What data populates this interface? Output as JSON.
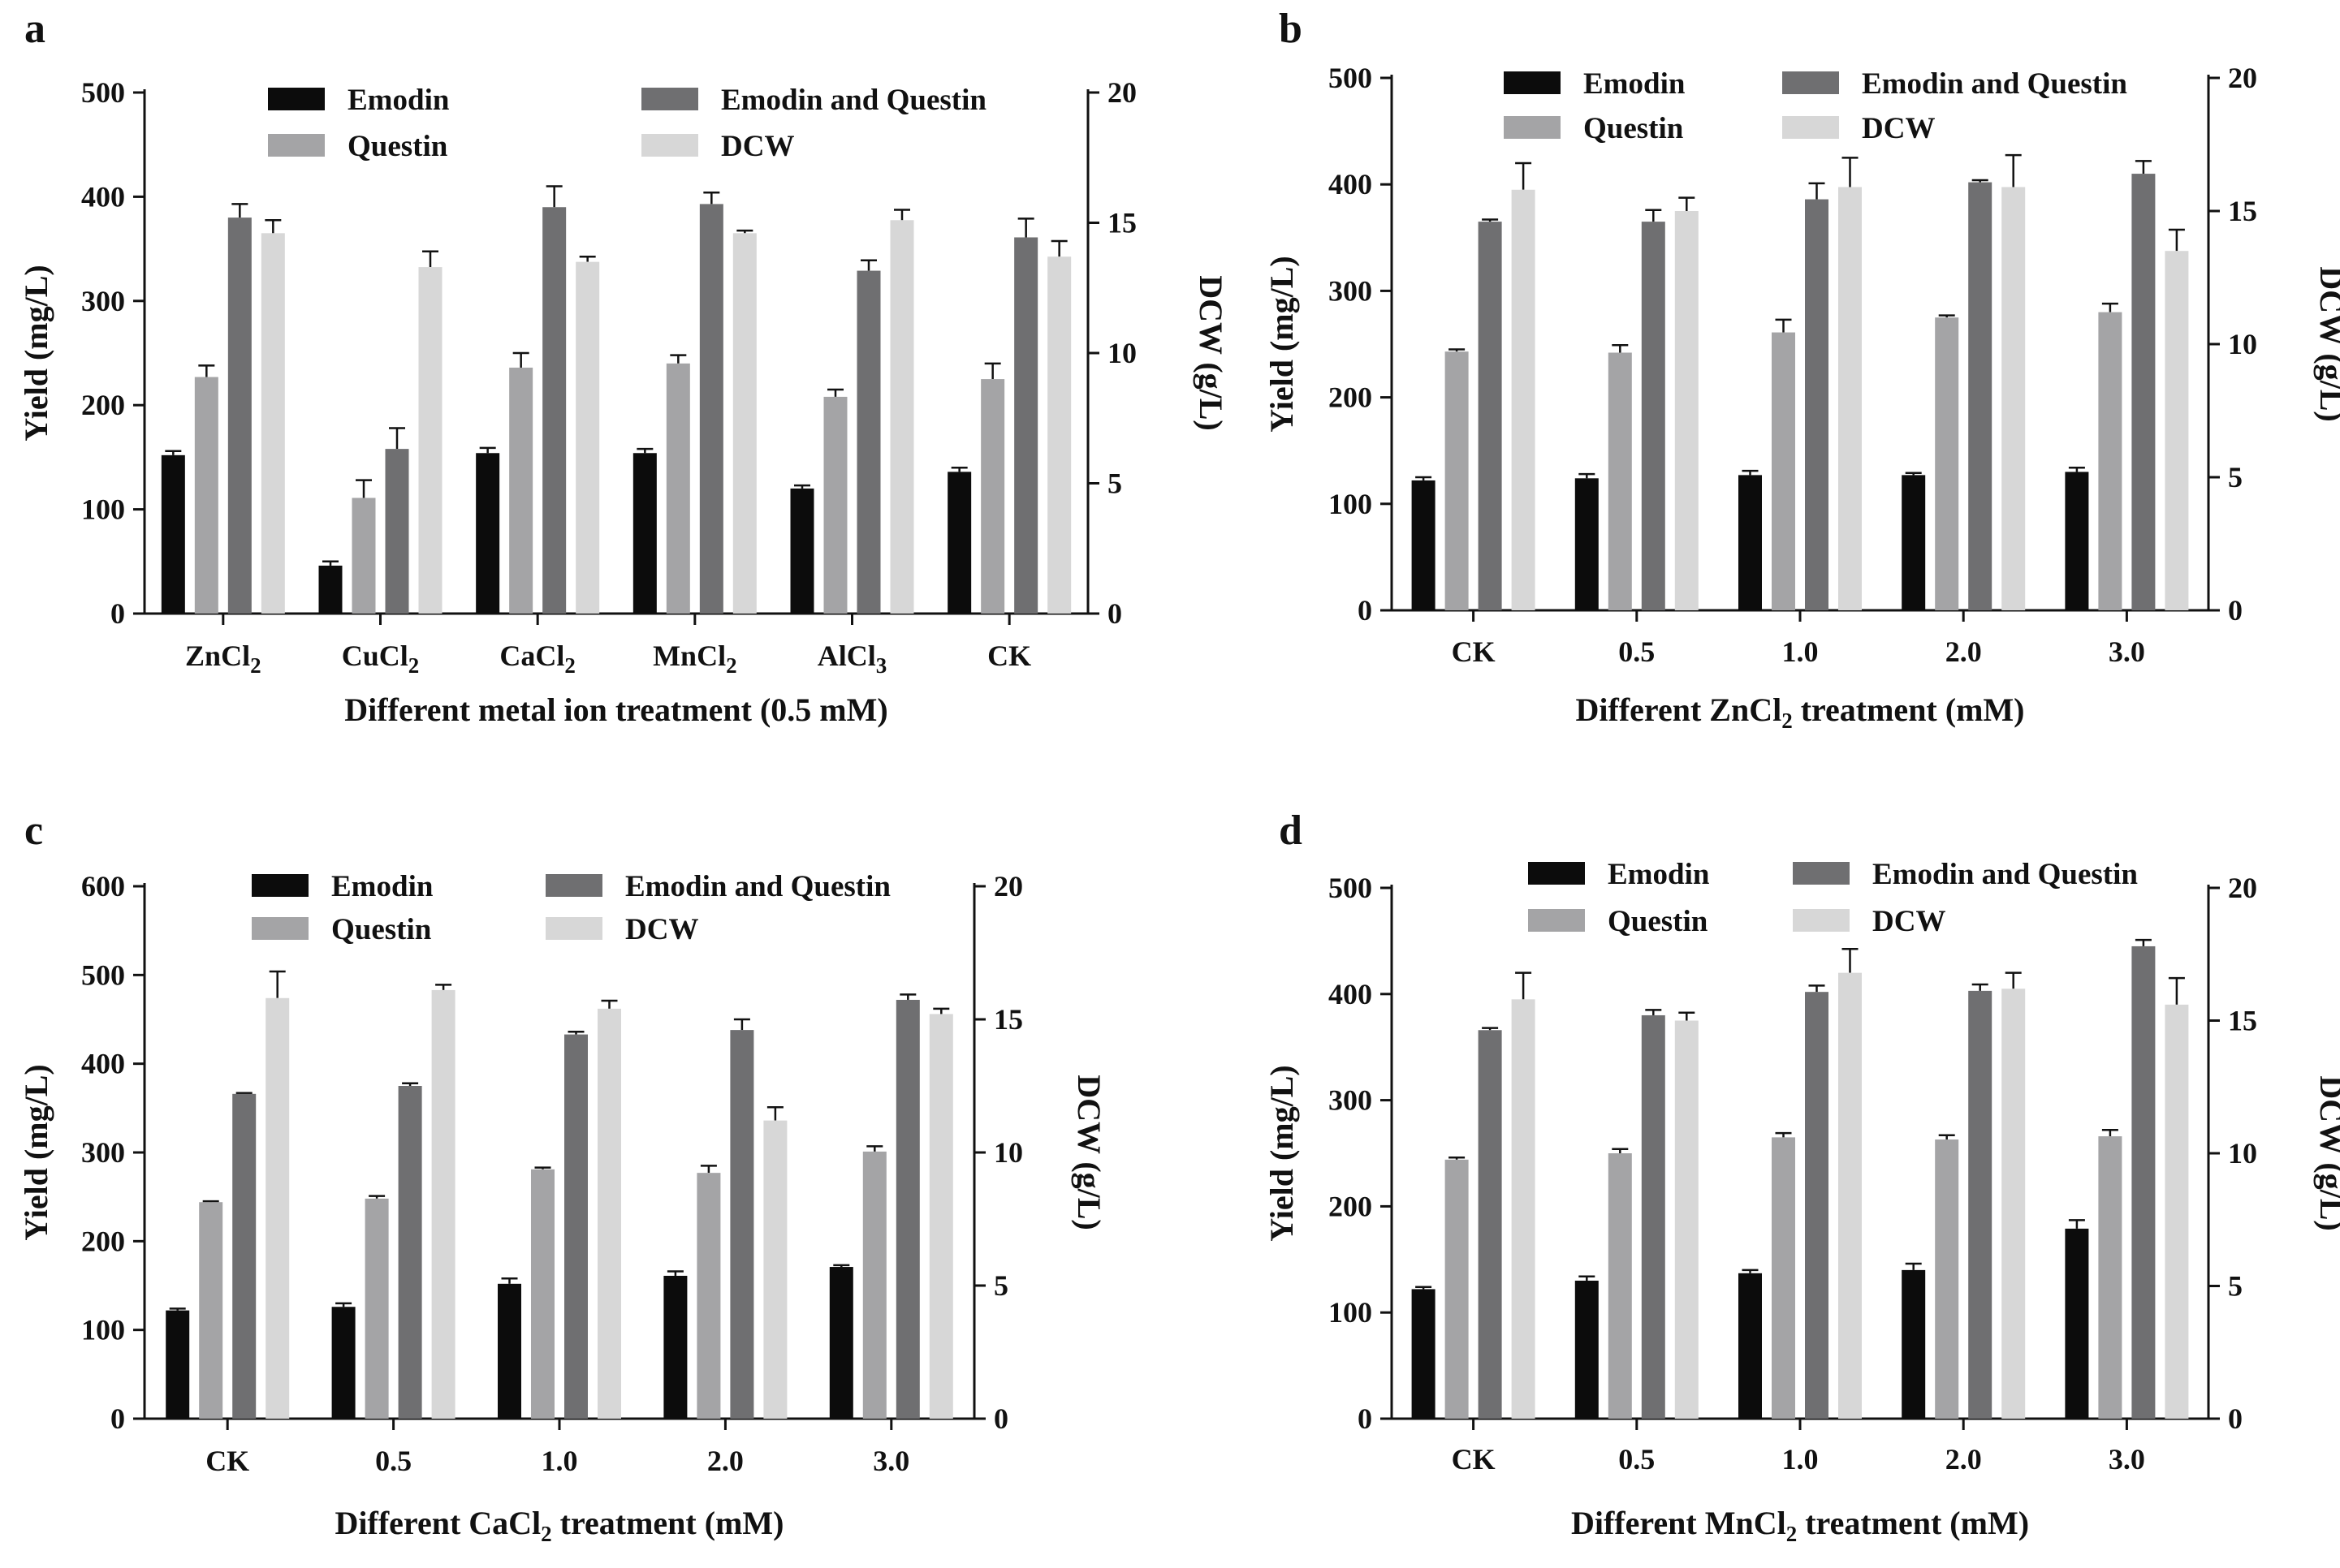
{
  "series_names": [
    "Emodin",
    "Questin",
    "Emodin and Questin",
    "DCW"
  ],
  "colors": {
    "emodin": "#0c0c0c",
    "questin": "#a4a4a6",
    "emodin_and_questin": "#6f6f71",
    "dcw": "#d7d7d7",
    "axis": "#111111"
  },
  "chart_data": [
    {
      "panel": "a",
      "type": "bar",
      "categories": [
        [
          "ZnCl",
          "2",
          ""
        ],
        [
          "CuCl",
          "2",
          ""
        ],
        [
          "CaCl",
          "2",
          ""
        ],
        [
          "MnCl",
          "2",
          ""
        ],
        [
          "AlCl",
          "3",
          ""
        ],
        [
          "CK",
          "",
          ""
        ]
      ],
      "xlabel": [
        "Different metal ion treatment (0.5 mM)",
        "",
        ""
      ],
      "ylabel": "Yield (mg/L)",
      "y2label": "DCW (g/L)",
      "ylim": [
        0,
        500
      ],
      "yticks": [
        0,
        100,
        200,
        300,
        400,
        500
      ],
      "y2lim": [
        0,
        20
      ],
      "y2ticks": [
        0,
        5,
        10,
        15,
        20
      ],
      "series": [
        {
          "name": "Emodin",
          "axis": "left",
          "values": [
            152,
            46,
            154,
            154,
            120,
            136
          ],
          "errors": [
            4,
            4,
            5,
            4,
            3,
            4
          ]
        },
        {
          "name": "Questin",
          "axis": "left",
          "values": [
            227,
            111,
            236,
            240,
            208,
            225
          ],
          "errors": [
            11,
            17,
            14,
            8,
            7,
            15
          ]
        },
        {
          "name": "Emodin and Questin",
          "axis": "left",
          "values": [
            380,
            158,
            390,
            393,
            329,
            361
          ],
          "errors": [
            13,
            20,
            20,
            11,
            10,
            18
          ]
        },
        {
          "name": "DCW",
          "axis": "right",
          "values": [
            14.6,
            13.3,
            13.5,
            14.6,
            15.1,
            13.7
          ],
          "errors": [
            0.5,
            0.6,
            0.2,
            0.1,
            0.4,
            0.6
          ]
        }
      ]
    },
    {
      "panel": "b",
      "type": "bar",
      "categories": [
        [
          "CK",
          "",
          ""
        ],
        [
          "0.5",
          "",
          ""
        ],
        [
          "1.0",
          "",
          ""
        ],
        [
          "2.0",
          "",
          ""
        ],
        [
          "3.0",
          "",
          ""
        ]
      ],
      "xlabel": [
        "Different ZnCl",
        "2",
        " treatment (mM)"
      ],
      "ylabel": "Yield (mg/L)",
      "y2label": "DCW (g/L)",
      "ylim": [
        0,
        500
      ],
      "yticks": [
        0,
        100,
        200,
        300,
        400,
        500
      ],
      "y2lim": [
        0,
        20
      ],
      "y2ticks": [
        0,
        5,
        10,
        15,
        20
      ],
      "series": [
        {
          "name": "Emodin",
          "axis": "left",
          "values": [
            122,
            124,
            127,
            127,
            130
          ],
          "errors": [
            3,
            4,
            4,
            2,
            4
          ]
        },
        {
          "name": "Questin",
          "axis": "left",
          "values": [
            243,
            242,
            261,
            275,
            280
          ],
          "errors": [
            2,
            7,
            12,
            2,
            8
          ]
        },
        {
          "name": "Emodin and Questin",
          "axis": "left",
          "values": [
            365,
            365,
            386,
            402,
            410
          ],
          "errors": [
            2,
            11,
            15,
            2,
            12
          ]
        },
        {
          "name": "DCW",
          "axis": "right",
          "values": [
            15.8,
            15.0,
            15.9,
            15.9,
            13.5
          ],
          "errors": [
            1.0,
            0.5,
            1.1,
            1.2,
            0.8
          ]
        }
      ]
    },
    {
      "panel": "c",
      "type": "bar",
      "categories": [
        [
          "CK",
          "",
          ""
        ],
        [
          "0.5",
          "",
          ""
        ],
        [
          "1.0",
          "",
          ""
        ],
        [
          "2.0",
          "",
          ""
        ],
        [
          "3.0",
          "",
          ""
        ]
      ],
      "xlabel": [
        "Different CaCl",
        "2",
        " treatment (mM)"
      ],
      "ylabel": "Yield (mg/L)",
      "y2label": "DCW (g/L)",
      "ylim": [
        0,
        600
      ],
      "yticks": [
        0,
        100,
        200,
        300,
        400,
        500,
        600
      ],
      "y2lim": [
        0,
        20
      ],
      "y2ticks": [
        0,
        5,
        10,
        15,
        20
      ],
      "series": [
        {
          "name": "Emodin",
          "axis": "left",
          "values": [
            122,
            126,
            152,
            161,
            171
          ],
          "errors": [
            2,
            4,
            6,
            5,
            2
          ]
        },
        {
          "name": "Questin",
          "axis": "left",
          "values": [
            244,
            248,
            281,
            277,
            301
          ],
          "errors": [
            1,
            3,
            2,
            8,
            6
          ]
        },
        {
          "name": "Emodin and Questin",
          "axis": "left",
          "values": [
            366,
            375,
            433,
            438,
            472
          ],
          "errors": [
            1,
            3,
            3,
            12,
            6
          ]
        },
        {
          "name": "DCW",
          "axis": "right",
          "values": [
            15.8,
            16.1,
            15.4,
            11.2,
            15.2
          ],
          "errors": [
            1.0,
            0.2,
            0.3,
            0.5,
            0.2
          ]
        }
      ]
    },
    {
      "panel": "d",
      "type": "bar",
      "categories": [
        [
          "CK",
          "",
          ""
        ],
        [
          "0.5",
          "",
          ""
        ],
        [
          "1.0",
          "",
          ""
        ],
        [
          "2.0",
          "",
          ""
        ],
        [
          "3.0",
          "",
          ""
        ]
      ],
      "xlabel": [
        "Different MnCl",
        "2",
        " treatment (mM)"
      ],
      "ylabel": "Yield (mg/L)",
      "y2label": "DCW (g/L)",
      "ylim": [
        0,
        500
      ],
      "yticks": [
        0,
        100,
        200,
        300,
        400,
        500
      ],
      "y2lim": [
        0,
        20
      ],
      "y2ticks": [
        0,
        5,
        10,
        15,
        20
      ],
      "series": [
        {
          "name": "Emodin",
          "axis": "left",
          "values": [
            122,
            130,
            137,
            140,
            179
          ],
          "errors": [
            2,
            4,
            3,
            6,
            8
          ]
        },
        {
          "name": "Questin",
          "axis": "left",
          "values": [
            244,
            250,
            265,
            263,
            266
          ],
          "errors": [
            2,
            4,
            4,
            4,
            6
          ]
        },
        {
          "name": "Emodin and Questin",
          "axis": "left",
          "values": [
            366,
            380,
            402,
            403,
            445
          ],
          "errors": [
            2,
            5,
            6,
            6,
            6
          ]
        },
        {
          "name": "DCW",
          "axis": "right",
          "values": [
            15.8,
            15.0,
            16.8,
            16.2,
            15.6
          ],
          "errors": [
            1.0,
            0.3,
            0.9,
            0.6,
            1.0
          ]
        }
      ]
    }
  ]
}
